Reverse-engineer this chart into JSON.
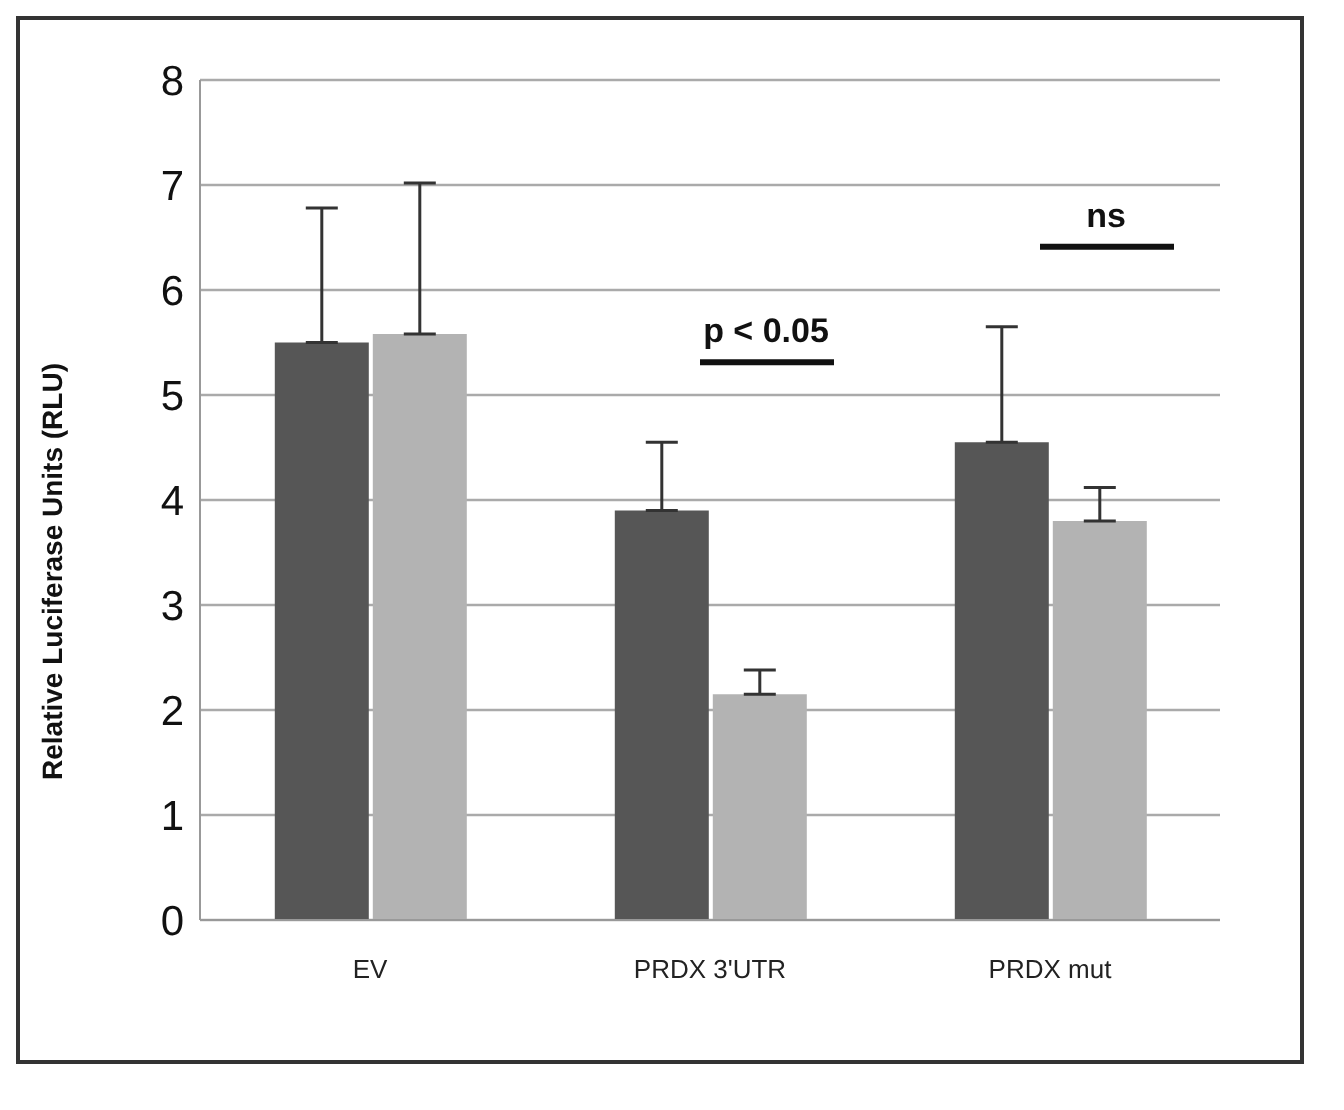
{
  "chart_data": {
    "type": "bar",
    "ylabel": "Relative Luciferase Units (RLU)",
    "categories": [
      "EV",
      "PRDX 3'UTR",
      "PRDX mut"
    ],
    "series": [
      {
        "color": "#565656",
        "values": [
          5.5,
          3.9,
          4.55
        ],
        "errors": [
          [
            5.5,
            6.78
          ],
          [
            3.9,
            4.55
          ],
          [
            4.55,
            5.65
          ]
        ]
      },
      {
        "color": "#b3b3b3",
        "values": [
          5.58,
          2.15,
          3.8
        ],
        "errors": [
          [
            5.58,
            7.02
          ],
          [
            2.15,
            2.38
          ],
          [
            3.8,
            4.12
          ]
        ]
      }
    ],
    "ylim": [
      0,
      8
    ],
    "yticks": [
      0,
      1,
      2,
      3,
      4,
      5,
      6,
      7,
      8
    ],
    "grid": "y",
    "legend": false,
    "annotations": [
      "p < 0.05",
      "ns"
    ]
  }
}
